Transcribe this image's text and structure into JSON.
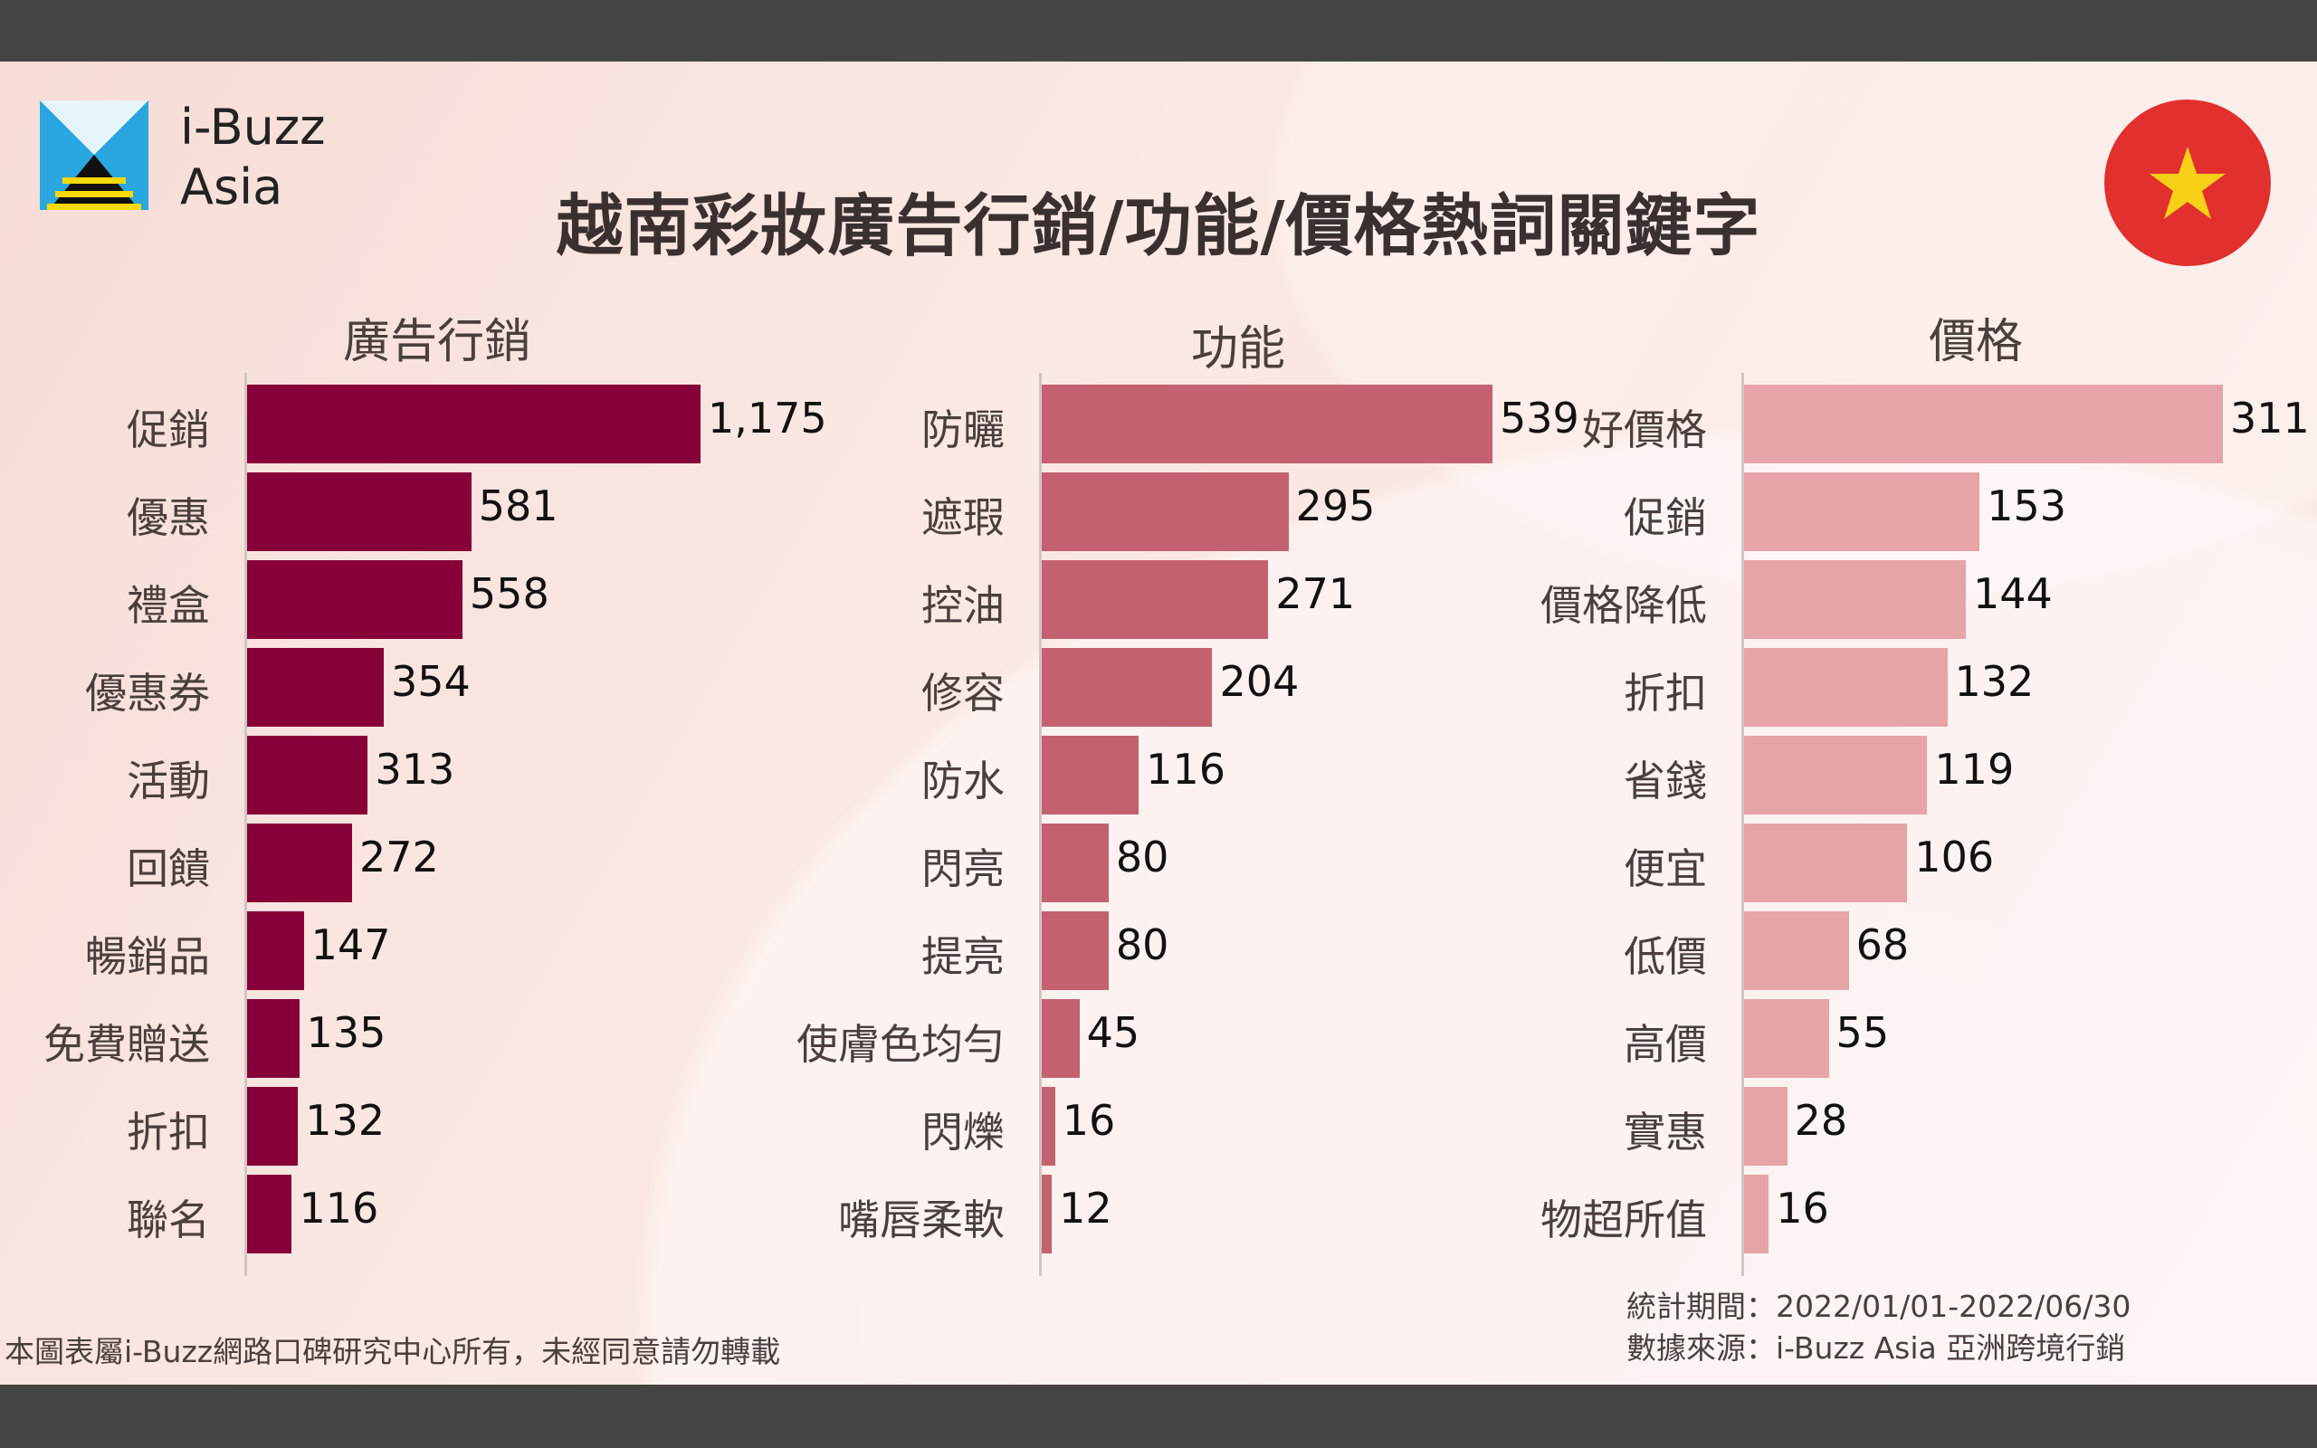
{
  "brand": {
    "line1": "i-Buzz",
    "line2": "Asia"
  },
  "title": "越南彩妝廣告行銷/功能/價格熱詞關鍵字",
  "chart_data": [
    {
      "type": "bar",
      "title": "廣告行銷",
      "color": "#880038",
      "categories": [
        "促銷",
        "優惠",
        "禮盒",
        "優惠券",
        "活動",
        "回饋",
        "暢銷品",
        "免費贈送",
        "折扣",
        "聯名"
      ],
      "values": [
        1175,
        581,
        558,
        354,
        313,
        272,
        147,
        135,
        132,
        116
      ],
      "labels": [
        "1,175",
        "581",
        "558",
        "354",
        "313",
        "272",
        "147",
        "135",
        "132",
        "116"
      ]
    },
    {
      "type": "bar",
      "title": "功能",
      "color": "#c46170",
      "categories": [
        "防曬",
        "遮瑕",
        "控油",
        "修容",
        "防水",
        "閃亮",
        "提亮",
        "使膚色均勻",
        "閃爍",
        "嘴唇柔軟"
      ],
      "values": [
        539,
        295,
        271,
        204,
        116,
        80,
        80,
        45,
        16,
        12
      ],
      "labels": [
        "539",
        "295",
        "271",
        "204",
        "116",
        "80",
        "80",
        "45",
        "16",
        "12"
      ]
    },
    {
      "type": "bar",
      "title": "價格",
      "color": "#e6a4a8",
      "categories": [
        "好價格",
        "促銷",
        "價格降低",
        "折扣",
        "省錢",
        "便宜",
        "低價",
        "高價",
        "實惠",
        "物超所值"
      ],
      "values": [
        311,
        153,
        144,
        132,
        119,
        106,
        68,
        55,
        28,
        16
      ],
      "labels": [
        "311",
        "153",
        "144",
        "132",
        "119",
        "106",
        "68",
        "55",
        "28",
        "16"
      ]
    }
  ],
  "footer": {
    "copyright": "本圖表屬i-Buzz網路口碑研究中心所有，未經同意請勿轉載",
    "period": "統計期間：2022/01/01-2022/06/30",
    "source": "數據來源：i-Buzz Asia 亞洲跨境行銷"
  }
}
